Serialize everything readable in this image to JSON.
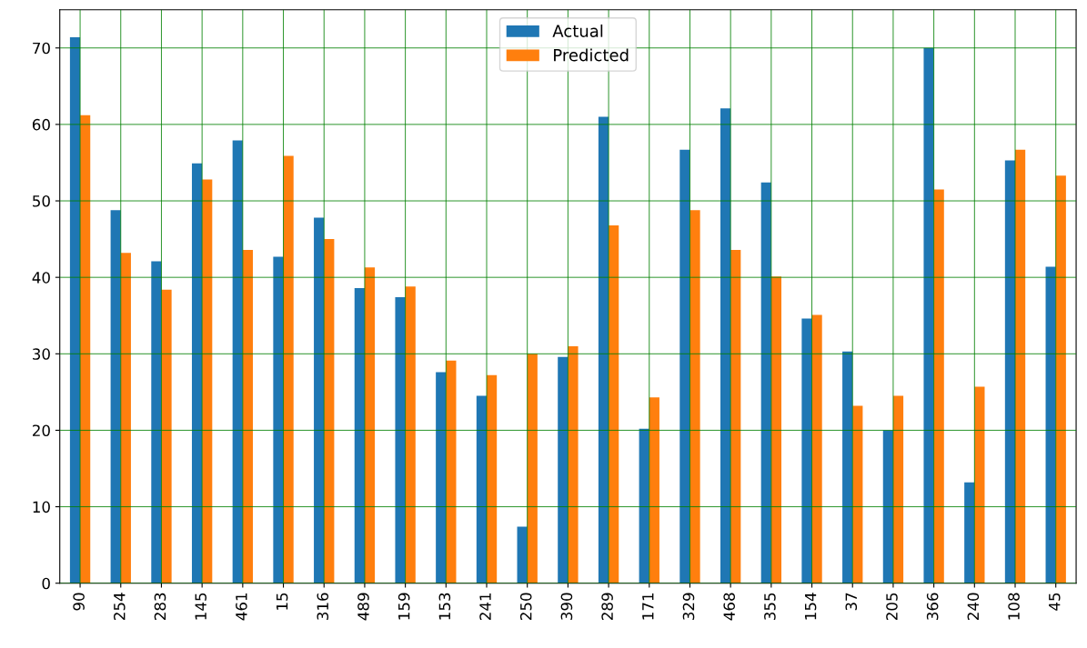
{
  "chart_data": {
    "type": "bar",
    "categories": [
      "90",
      "254",
      "283",
      "145",
      "461",
      "15",
      "316",
      "489",
      "159",
      "153",
      "241",
      "250",
      "390",
      "289",
      "171",
      "329",
      "468",
      "355",
      "154",
      "37",
      "205",
      "366",
      "240",
      "108",
      "45"
    ],
    "series": [
      {
        "name": "Actual",
        "color": "#1f77b4",
        "values": [
          71.4,
          48.8,
          42.1,
          54.9,
          57.9,
          42.7,
          47.8,
          38.6,
          37.4,
          27.6,
          24.5,
          7.4,
          29.6,
          61.0,
          20.2,
          56.7,
          62.1,
          52.4,
          34.6,
          30.3,
          20.0,
          70.0,
          13.2,
          55.3,
          41.4
        ]
      },
      {
        "name": "Predicted",
        "color": "#ff7f0e",
        "values": [
          61.2,
          43.2,
          38.4,
          52.8,
          43.6,
          55.9,
          45.0,
          41.3,
          38.8,
          29.1,
          27.2,
          30.0,
          31.0,
          46.8,
          24.3,
          48.8,
          43.6,
          40.1,
          35.1,
          23.2,
          24.5,
          51.5,
          25.7,
          56.7,
          53.3
        ]
      }
    ],
    "ylim": [
      0,
      75
    ],
    "yticks": [
      0,
      10,
      20,
      30,
      40,
      50,
      60,
      70
    ],
    "grid": true,
    "legend": "top"
  }
}
